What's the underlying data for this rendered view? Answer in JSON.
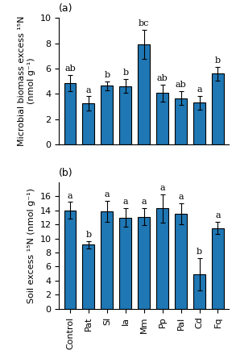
{
  "chart_data": [
    {
      "type": "bar",
      "title": "(a)",
      "ylabel": "Microbial biomass excess ¹⁵N\n(nmol g⁻¹)",
      "categories": [
        "Control",
        "Pat",
        "Sl",
        "Ia",
        "Mm",
        "Pp",
        "Pal",
        "Cd",
        "Fq"
      ],
      "values": [
        4.85,
        3.25,
        4.65,
        4.6,
        7.9,
        4.05,
        3.65,
        3.3,
        5.6
      ],
      "errors": [
        0.65,
        0.55,
        0.35,
        0.55,
        1.15,
        0.7,
        0.55,
        0.55,
        0.55
      ],
      "annotations": [
        "ab",
        "a",
        "b",
        "b",
        "bc",
        "ab",
        "ab",
        "a",
        "b"
      ],
      "ylim": [
        0,
        10
      ],
      "yticks": [
        0,
        2,
        4,
        6,
        8,
        10
      ],
      "tick_labels": "y"
    },
    {
      "type": "bar",
      "title": "(b)",
      "ylabel": "Soil excess ¹⁵N (nmol g⁻¹)",
      "categories": [
        "Control",
        "Pat",
        "Sl",
        "Ia",
        "Mm",
        "Pp",
        "Pal",
        "Cd",
        "Fq"
      ],
      "values": [
        14.0,
        9.1,
        13.9,
        13.0,
        13.1,
        14.3,
        13.5,
        4.9,
        11.5
      ],
      "errors": [
        1.2,
        0.55,
        1.5,
        1.3,
        1.2,
        2.0,
        1.5,
        2.3,
        0.9
      ],
      "annotations": [
        "a",
        "b",
        "a",
        "a",
        "a",
        "a",
        "a",
        "b",
        "a"
      ],
      "ylim": [
        0,
        18
      ],
      "yticks": [
        0,
        2,
        4,
        6,
        8,
        10,
        12,
        14,
        16
      ]
    }
  ]
}
